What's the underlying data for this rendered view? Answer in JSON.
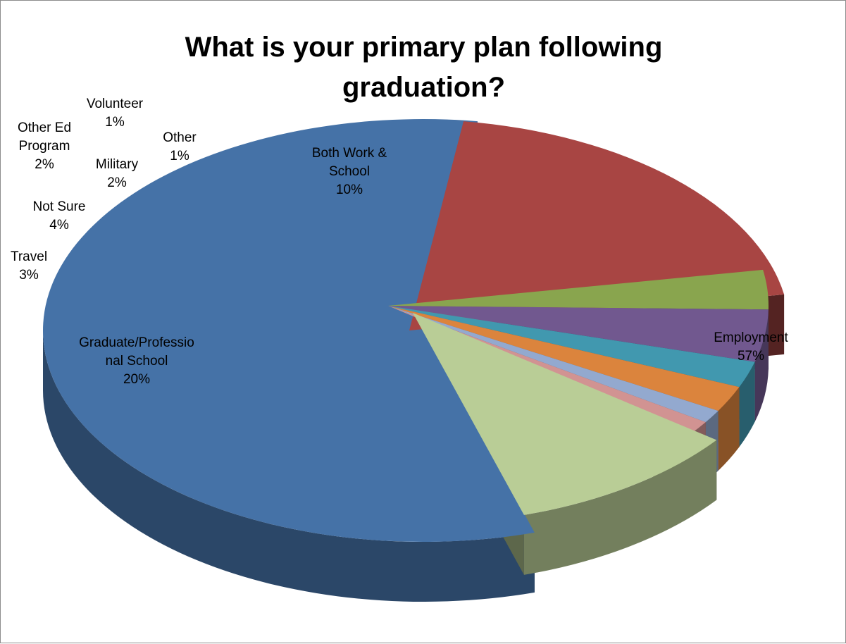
{
  "chart_data": {
    "type": "pie",
    "title": "What is your primary plan following graduation?",
    "title_lines": [
      "What is your primary plan following",
      "graduation?"
    ],
    "style": "3d-exploded",
    "slices": [
      {
        "name": "Employment",
        "label_lines": [
          "Employment"
        ],
        "percent_label": "57%",
        "value": 57,
        "color": "#4572a7"
      },
      {
        "name": "Graduate/Professional School",
        "label_lines": [
          "Graduate/Professio",
          "nal School"
        ],
        "percent_label": "20%",
        "value": 20,
        "color": "#a84543"
      },
      {
        "name": "Travel",
        "label_lines": [
          "Travel"
        ],
        "percent_label": "3%",
        "value": 3,
        "color": "#89a54e"
      },
      {
        "name": "Not Sure",
        "label_lines": [
          "Not Sure"
        ],
        "percent_label": "4%",
        "value": 4,
        "color": "#71588f"
      },
      {
        "name": "Military",
        "label_lines": [
          "Military"
        ],
        "percent_label": "2%",
        "value": 2,
        "color": "#4198af"
      },
      {
        "name": "Other Ed Program",
        "label_lines": [
          "Other Ed",
          "Program"
        ],
        "percent_label": "2%",
        "value": 2,
        "color": "#db843d"
      },
      {
        "name": "Volunteer",
        "label_lines": [
          "Volunteer"
        ],
        "percent_label": "1%",
        "value": 1,
        "color": "#93a9cf"
      },
      {
        "name": "Other",
        "label_lines": [
          "Other"
        ],
        "percent_label": "1%",
        "value": 1,
        "color": "#d19392"
      },
      {
        "name": "Both Work & School",
        "label_lines": [
          "Both Work &",
          "School"
        ],
        "percent_label": "10%",
        "value": 10,
        "color": "#b9cd96"
      }
    ],
    "legend": "none",
    "data_labels": "category and percent"
  }
}
